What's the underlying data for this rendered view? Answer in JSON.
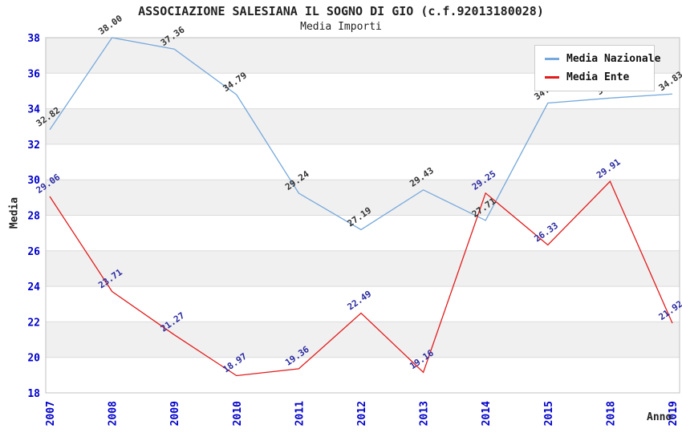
{
  "chart_data": {
    "type": "line",
    "title": "ASSOCIAZIONE SALESIANA IL SOGNO DI GIO (c.f.92013180028)",
    "subtitle": "Media Importi",
    "xlabel": "Anno",
    "ylabel": "Media",
    "categories": [
      "2007",
      "2008",
      "2009",
      "2010",
      "2011",
      "2012",
      "2013",
      "2014",
      "2015",
      "2018",
      "2019"
    ],
    "series": [
      {
        "name": "Media Nazionale",
        "color": "#77A9DC",
        "label_color": "#333333",
        "values": [
          32.82,
          38.0,
          37.36,
          34.79,
          29.24,
          27.19,
          29.43,
          27.71,
          34.32,
          34.6,
          34.83
        ]
      },
      {
        "name": "Media Ente",
        "color": "#E31B1B",
        "label_color": "#2A2AA0",
        "values": [
          29.06,
          23.71,
          21.27,
          18.97,
          19.36,
          22.49,
          19.16,
          29.25,
          26.33,
          29.91,
          21.92
        ]
      }
    ],
    "ylim": [
      18,
      38
    ],
    "ytick_step": 2,
    "yticks": [
      18,
      20,
      22,
      24,
      26,
      28,
      30,
      32,
      34,
      36,
      38
    ],
    "grid": true,
    "legend_position": "top-right",
    "colors": {
      "tick_label": "#0000CC",
      "band": "#F0F0F0",
      "grid": "#DBDBDB",
      "border": "#C0C0C0",
      "text": "#222222",
      "legend_border": "#CCCCCC"
    }
  }
}
